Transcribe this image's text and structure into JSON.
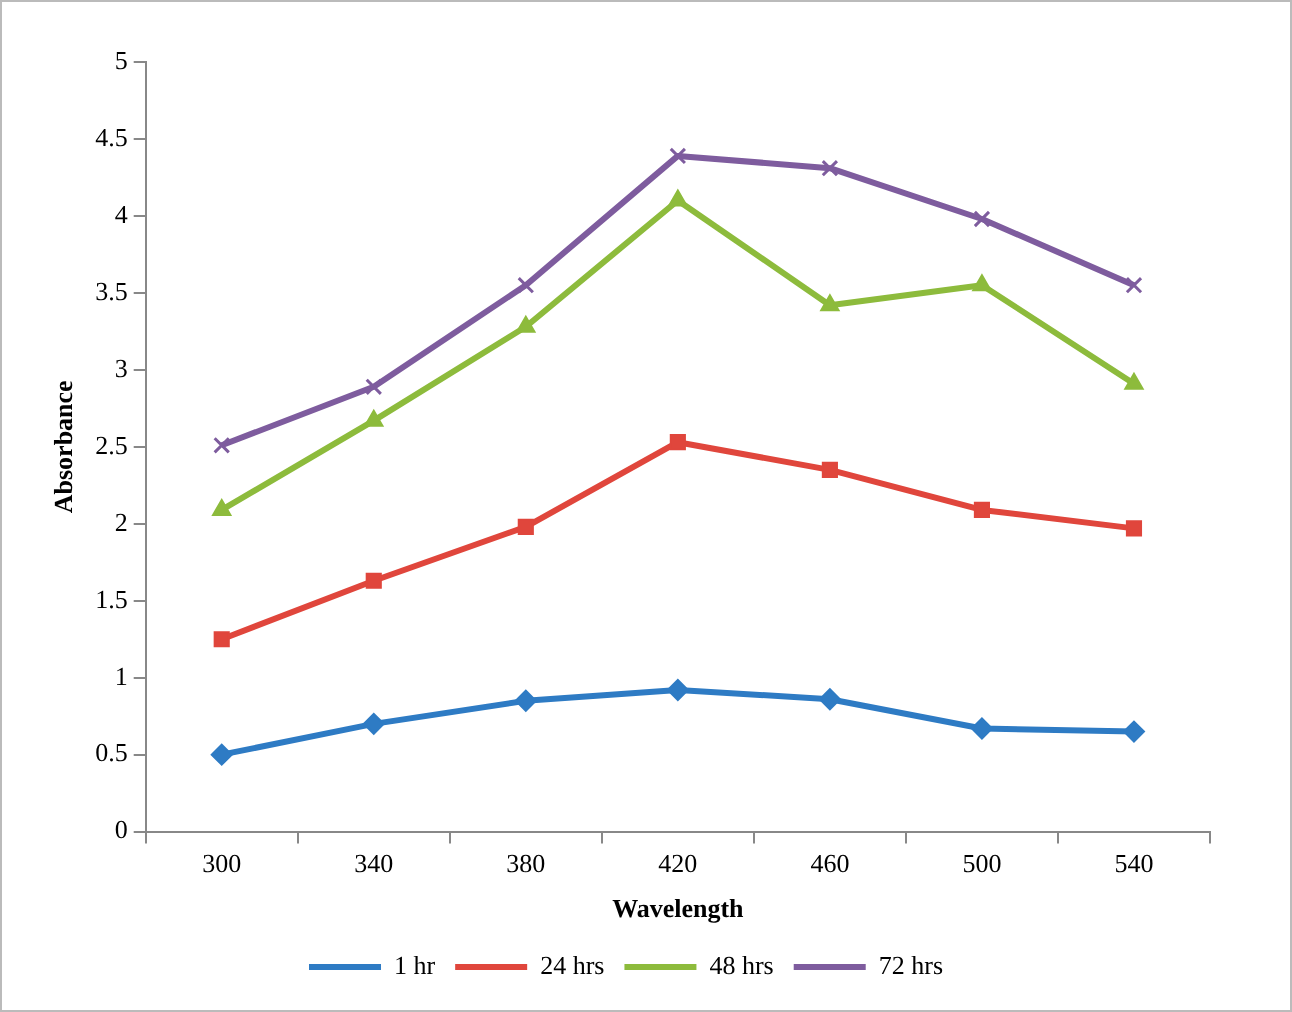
{
  "chart_data": {
    "type": "line",
    "xlabel": "Wavelength",
    "ylabel": "Absorbance",
    "categories": [
      "300",
      "340",
      "380",
      "420",
      "460",
      "500",
      "540"
    ],
    "series": [
      {
        "name": "1 hr",
        "color": "#2e7bc4",
        "marker": "diamond",
        "values": [
          0.5,
          0.7,
          0.85,
          0.92,
          0.86,
          0.67,
          0.65
        ]
      },
      {
        "name": "24 hrs",
        "color": "#e0463c",
        "marker": "square",
        "values": [
          1.25,
          1.63,
          1.98,
          2.53,
          2.35,
          2.09,
          1.97
        ]
      },
      {
        "name": "48 hrs",
        "color": "#8dbb3c",
        "marker": "triangle",
        "values": [
          2.09,
          2.67,
          3.28,
          4.1,
          3.42,
          3.55,
          2.91
        ]
      },
      {
        "name": "72 hrs",
        "color": "#7e5c9e",
        "marker": "cross",
        "values": [
          2.51,
          2.89,
          3.55,
          4.39,
          4.31,
          3.98,
          3.55
        ]
      }
    ],
    "ylim": [
      0,
      5
    ],
    "yticks": [
      0,
      0.5,
      1,
      1.5,
      2,
      2.5,
      3,
      3.5,
      4,
      4.5,
      5
    ],
    "grid": false,
    "legend": "bottom"
  }
}
